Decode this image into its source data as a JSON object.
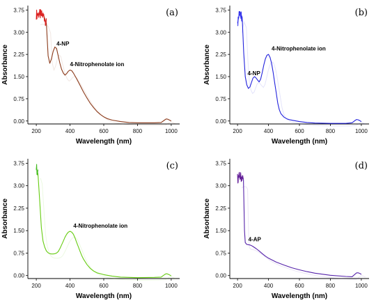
{
  "chart_data": [
    {
      "type": "line",
      "panel_label": "(a)",
      "xlabel": "Wavelength (nm)",
      "ylabel": "Absorbance",
      "xlim": [
        150,
        1050
      ],
      "ylim": [
        -0.1,
        3.9
      ],
      "x_ticks": [
        200,
        400,
        600,
        800,
        1000
      ],
      "y_ticks": [
        "0.00",
        "0.75",
        "1.50",
        "2.25",
        "3.00",
        "3.75"
      ],
      "grid": false,
      "color": "#8B3A1A",
      "noise_color": "#DD2222",
      "annotations": [
        {
          "text": "4-NP",
          "x": 320,
          "y": 2.55
        },
        {
          "text": "4-Nitrophenolate ion",
          "x": 400,
          "y": 1.85
        }
      ],
      "series": [
        {
          "x": [
            200,
            215,
            230,
            245,
            260,
            270,
            280,
            290,
            300,
            310,
            320,
            330,
            340,
            350,
            360,
            370,
            380,
            390,
            400,
            410,
            420,
            430,
            440,
            460,
            480,
            500,
            520,
            540,
            560,
            580,
            600,
            620,
            650,
            700,
            750,
            800,
            850,
            900,
            940,
            960,
            970,
            980,
            990,
            1000
          ],
          "y": [
            3.6,
            3.62,
            3.58,
            3.55,
            3.3,
            2.2,
            1.95,
            2.1,
            2.35,
            2.5,
            2.45,
            2.2,
            1.95,
            1.75,
            1.62,
            1.55,
            1.6,
            1.68,
            1.72,
            1.7,
            1.62,
            1.52,
            1.42,
            1.2,
            0.98,
            0.78,
            0.6,
            0.45,
            0.32,
            0.22,
            0.14,
            0.08,
            0.03,
            -0.02,
            -0.05,
            -0.06,
            -0.06,
            -0.06,
            -0.05,
            0.03,
            0.07,
            0.06,
            0.03,
            0.0
          ]
        }
      ]
    },
    {
      "type": "line",
      "panel_label": "(b)",
      "xlabel": "Wavelength (nm)",
      "ylabel": "Absorbance",
      "xlim": [
        150,
        1050
      ],
      "ylim": [
        -0.1,
        3.9
      ],
      "x_ticks": [
        200,
        400,
        600,
        800,
        1000
      ],
      "y_ticks": [
        "0.00",
        "0.75",
        "1.50",
        "2.25",
        "3.00",
        "3.75"
      ],
      "grid": false,
      "color": "#2222DD",
      "noise_color": "#3333EE",
      "annotations": [
        {
          "text": "4-NP",
          "x": 265,
          "y": 1.55
        },
        {
          "text": "4-Nitrophenolate ion",
          "x": 420,
          "y": 2.38
        }
      ],
      "series": [
        {
          "x": [
            200,
            215,
            230,
            240,
            250,
            260,
            270,
            280,
            290,
            300,
            310,
            320,
            330,
            340,
            350,
            360,
            370,
            380,
            390,
            400,
            410,
            420,
            430,
            440,
            450,
            460,
            470,
            480,
            500,
            520,
            540,
            560,
            600,
            650,
            700,
            800,
            900,
            940,
            960,
            970,
            980,
            990,
            1000
          ],
          "y": [
            3.3,
            3.7,
            3.5,
            2.3,
            1.5,
            1.22,
            1.1,
            1.15,
            1.3,
            1.45,
            1.5,
            1.45,
            1.38,
            1.32,
            1.42,
            1.65,
            1.9,
            2.1,
            2.22,
            2.25,
            2.15,
            1.95,
            1.65,
            1.3,
            0.95,
            0.6,
            0.38,
            0.25,
            0.13,
            0.07,
            0.04,
            0.02,
            -0.02,
            -0.05,
            -0.07,
            -0.08,
            -0.08,
            -0.06,
            0.02,
            0.05,
            0.04,
            0.01,
            -0.02
          ]
        }
      ]
    },
    {
      "type": "line",
      "panel_label": "(c)",
      "xlabel": "Wavelength (nm)",
      "ylabel": "Absorbance",
      "xlim": [
        150,
        1050
      ],
      "ylim": [
        -0.1,
        3.9
      ],
      "x_ticks": [
        200,
        400,
        600,
        800,
        1000
      ],
      "y_ticks": [
        "0.00",
        "0.75",
        "1.50",
        "2.25",
        "3.00",
        "3.75"
      ],
      "grid": false,
      "color": "#66CC11",
      "noise_color": "#44BB22",
      "annotations": [
        {
          "text": "4-Nitrophenolate ion",
          "x": 420,
          "y": 1.6
        }
      ],
      "series": [
        {
          "x": [
            200,
            210,
            220,
            230,
            240,
            250,
            260,
            270,
            280,
            290,
            300,
            310,
            320,
            330,
            340,
            350,
            360,
            370,
            380,
            390,
            400,
            410,
            420,
            430,
            440,
            450,
            460,
            470,
            480,
            500,
            520,
            540,
            560,
            600,
            650,
            700,
            800,
            900,
            940,
            960,
            970,
            980,
            990,
            1000
          ],
          "y": [
            3.6,
            3.4,
            2.5,
            1.6,
            1.15,
            0.95,
            0.82,
            0.76,
            0.73,
            0.72,
            0.72,
            0.73,
            0.75,
            0.8,
            0.9,
            1.02,
            1.15,
            1.28,
            1.38,
            1.45,
            1.48,
            1.45,
            1.38,
            1.25,
            1.1,
            0.95,
            0.8,
            0.66,
            0.55,
            0.37,
            0.24,
            0.15,
            0.09,
            0.03,
            -0.02,
            -0.05,
            -0.07,
            -0.06,
            -0.05,
            0.03,
            0.06,
            0.05,
            0.02,
            -0.01
          ]
        }
      ]
    },
    {
      "type": "line",
      "panel_label": "(d)",
      "xlabel": "Wavelength (nm)",
      "ylabel": "Absorbance",
      "xlim": [
        150,
        1050
      ],
      "ylim": [
        -0.1,
        3.9
      ],
      "x_ticks": [
        200,
        400,
        600,
        800,
        1000
      ],
      "y_ticks": [
        "0.00",
        "0.75",
        "1.50",
        "2.25",
        "3.00",
        "3.75"
      ],
      "grid": false,
      "color": "#5522AA",
      "noise_color": "#662299",
      "annotations": [
        {
          "text": "4-AP",
          "x": 270,
          "y": 1.15
        }
      ],
      "series": [
        {
          "x": [
            200,
            215,
            230,
            238,
            245,
            250,
            260,
            270,
            280,
            290,
            300,
            320,
            340,
            360,
            380,
            400,
            450,
            500,
            550,
            600,
            650,
            700,
            800,
            900,
            940,
            960,
            970,
            980,
            990,
            1000
          ],
          "y": [
            3.25,
            3.3,
            3.28,
            3.2,
            1.5,
            1.1,
            1.04,
            1.03,
            1.02,
            1.0,
            0.97,
            0.9,
            0.82,
            0.73,
            0.65,
            0.58,
            0.45,
            0.35,
            0.26,
            0.19,
            0.13,
            0.08,
            0.01,
            -0.03,
            -0.04,
            0.05,
            0.09,
            0.09,
            0.07,
            0.04
          ]
        }
      ]
    }
  ]
}
